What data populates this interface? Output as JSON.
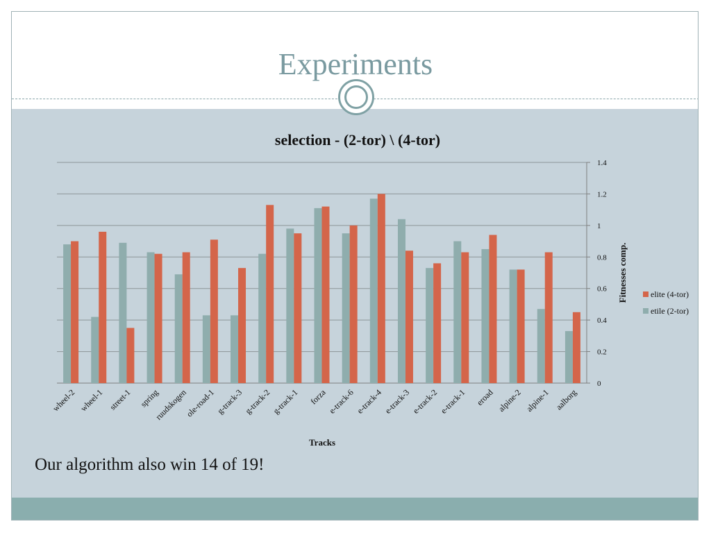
{
  "slide": {
    "title": "Experiments",
    "caption": "Our algorithm also win 14 of 19!"
  },
  "colors": {
    "elite": "#d4654a",
    "etile": "#8fadad",
    "axis": "#7f7f7f",
    "title": "#7a9aa0",
    "content_bg": "#c6d3db",
    "footer": "#8aaeae"
  },
  "chart_data": {
    "type": "bar",
    "title": "selection - (2-tor) \\ (4-tor)",
    "xlabel": "Tracks",
    "ylabel": "Fitnesses comp.",
    "ylim": [
      0,
      1.4
    ],
    "yticks": [
      "0",
      "0.2",
      "0.4",
      "0.6",
      "0.8",
      "1",
      "1.2",
      "1.4"
    ],
    "ytick_values": [
      0,
      0.2,
      0.4,
      0.6,
      0.8,
      1,
      1.2,
      1.4
    ],
    "y_axis_side": "right",
    "grid": true,
    "legend_position": "right",
    "categories": [
      "wheel-2",
      "wheel-1",
      "street-1",
      "spring",
      "ruudskogen",
      "ole-road-1",
      "g-track-3",
      "g-track-2",
      "g-track-1",
      "forza",
      "e-track-6",
      "e-track-4",
      "e-track-3",
      "e-track-2",
      "e-track-1",
      "eroad",
      "alpine-2",
      "alpine-1",
      "aalborg"
    ],
    "series": [
      {
        "name": "etile (2-tor)",
        "color": "#8fadad",
        "values": [
          0.88,
          0.42,
          0.89,
          0.83,
          0.69,
          0.43,
          0.43,
          0.82,
          0.98,
          1.11,
          0.95,
          1.17,
          1.04,
          0.73,
          0.9,
          0.85,
          0.72,
          0.47,
          0.33
        ]
      },
      {
        "name": "elite (4-tor)",
        "color": "#d4654a",
        "values": [
          0.9,
          0.96,
          0.35,
          0.82,
          0.83,
          0.91,
          0.73,
          1.13,
          0.95,
          1.12,
          1.0,
          1.2,
          0.84,
          0.76,
          0.83,
          0.94,
          0.72,
          0.83,
          0.45
        ]
      }
    ],
    "legend": [
      {
        "label": "elite (4-tor)",
        "color": "#d4654a"
      },
      {
        "label": "etile (2-tor)",
        "color": "#8fadad"
      }
    ]
  }
}
